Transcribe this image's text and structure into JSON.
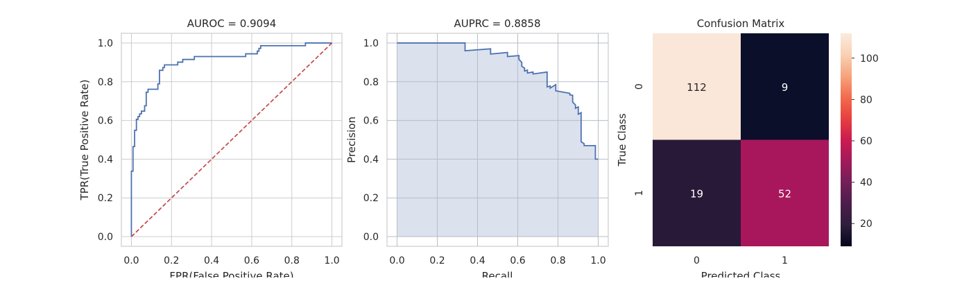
{
  "chart_data": [
    {
      "type": "line",
      "title": "AUROC = 0.9094",
      "xlabel": "FPR(False Positive Rate)",
      "ylabel": "TPR(True Positive Rate)",
      "xlim": [
        -0.05,
        1.05
      ],
      "ylim": [
        -0.05,
        1.05
      ],
      "xticks": [
        "0.0",
        "0.2",
        "0.4",
        "0.6",
        "0.8",
        "1.0"
      ],
      "yticks": [
        "0.0",
        "0.2",
        "0.4",
        "0.6",
        "0.8",
        "1.0"
      ],
      "grid": true,
      "series": [
        {
          "color": "#4c72b0",
          "x": [
            0.0,
            0.0,
            0.008,
            0.008,
            0.016,
            0.016,
            0.025,
            0.025,
            0.033,
            0.033,
            0.041,
            0.041,
            0.05,
            0.05,
            0.066,
            0.066,
            0.074,
            0.074,
            0.083,
            0.083,
            0.132,
            0.132,
            0.14,
            0.14,
            0.157,
            0.157,
            0.165,
            0.165,
            0.231,
            0.231,
            0.256,
            0.256,
            0.314,
            0.314,
            0.57,
            0.57,
            0.628,
            0.628,
            0.636,
            0.636,
            0.645,
            0.645,
            0.868,
            0.868,
            1.0
          ],
          "y": [
            0.0,
            0.338,
            0.338,
            0.465,
            0.465,
            0.549,
            0.549,
            0.606,
            0.606,
            0.62,
            0.62,
            0.634,
            0.634,
            0.648,
            0.648,
            0.676,
            0.676,
            0.746,
            0.746,
            0.761,
            0.761,
            0.789,
            0.789,
            0.859,
            0.859,
            0.873,
            0.873,
            0.887,
            0.887,
            0.901,
            0.901,
            0.915,
            0.915,
            0.93,
            0.93,
            0.944,
            0.944,
            0.958,
            0.958,
            0.972,
            0.972,
            0.986,
            0.986,
            1.0,
            1.0
          ]
        },
        {
          "color": "#c44e52",
          "dashed": true,
          "x": [
            0.0,
            1.0
          ],
          "y": [
            0.0,
            1.0
          ]
        }
      ]
    },
    {
      "type": "area",
      "title": "AUPRC = 0.8858",
      "xlabel": "Recall",
      "ylabel": "Precision",
      "xlim": [
        -0.05,
        1.05
      ],
      "ylim": [
        -0.05,
        1.05
      ],
      "xticks": [
        "0.0",
        "0.2",
        "0.4",
        "0.6",
        "0.8",
        "1.0"
      ],
      "yticks": [
        "0.0",
        "0.2",
        "0.4",
        "0.6",
        "0.8",
        "1.0"
      ],
      "grid": true,
      "series": [
        {
          "color": "#4c72b0",
          "fill": "#dce1ee",
          "x": [
            0.0,
            0.338,
            0.338,
            0.465,
            0.465,
            0.549,
            0.549,
            0.606,
            0.606,
            0.62,
            0.62,
            0.634,
            0.634,
            0.648,
            0.648,
            0.676,
            0.676,
            0.746,
            0.746,
            0.761,
            0.761,
            0.789,
            0.789,
            0.859,
            0.859,
            0.873,
            0.873,
            0.887,
            0.887,
            0.901,
            0.901,
            0.915,
            0.915,
            0.93,
            0.93,
            0.944,
            0.944,
            0.958,
            0.958,
            0.972,
            0.972,
            0.986,
            0.986,
            1.0
          ],
          "y": [
            1.0,
            1.0,
            0.96,
            0.97,
            0.943,
            0.951,
            0.93,
            0.935,
            0.915,
            0.9,
            0.88,
            0.87,
            0.855,
            0.86,
            0.845,
            0.85,
            0.84,
            0.85,
            0.773,
            0.778,
            0.767,
            0.785,
            0.753,
            0.74,
            0.732,
            0.73,
            0.695,
            0.68,
            0.663,
            0.67,
            0.632,
            0.64,
            0.49,
            0.48,
            0.47,
            0.47,
            0.47,
            0.47,
            0.47,
            0.47,
            0.47,
            0.47,
            0.4,
            0.4
          ]
        }
      ]
    },
    {
      "type": "heatmap",
      "title": "Confusion Matrix",
      "xlabel": "Predicted Class",
      "ylabel": "True Class",
      "xticks": [
        "0",
        "1"
      ],
      "yticks": [
        "0",
        "1"
      ],
      "values": [
        [
          112,
          9
        ],
        [
          19,
          52
        ]
      ],
      "colors": [
        [
          "#fae7d9",
          "#0b0f29"
        ],
        [
          "#281938",
          "#a8175b"
        ]
      ],
      "colorbar": {
        "range": [
          9,
          112
        ],
        "ticks": [
          "20",
          "40",
          "60",
          "80",
          "100"
        ],
        "stops": [
          "#03051a",
          "#2e1e3c",
          "#4c1d4b",
          "#731f57",
          "#a11a5b",
          "#cb1b4f",
          "#e83f3f",
          "#f26c4e",
          "#f6a47c",
          "#f9d1b4",
          "#faebdd"
        ]
      }
    }
  ]
}
